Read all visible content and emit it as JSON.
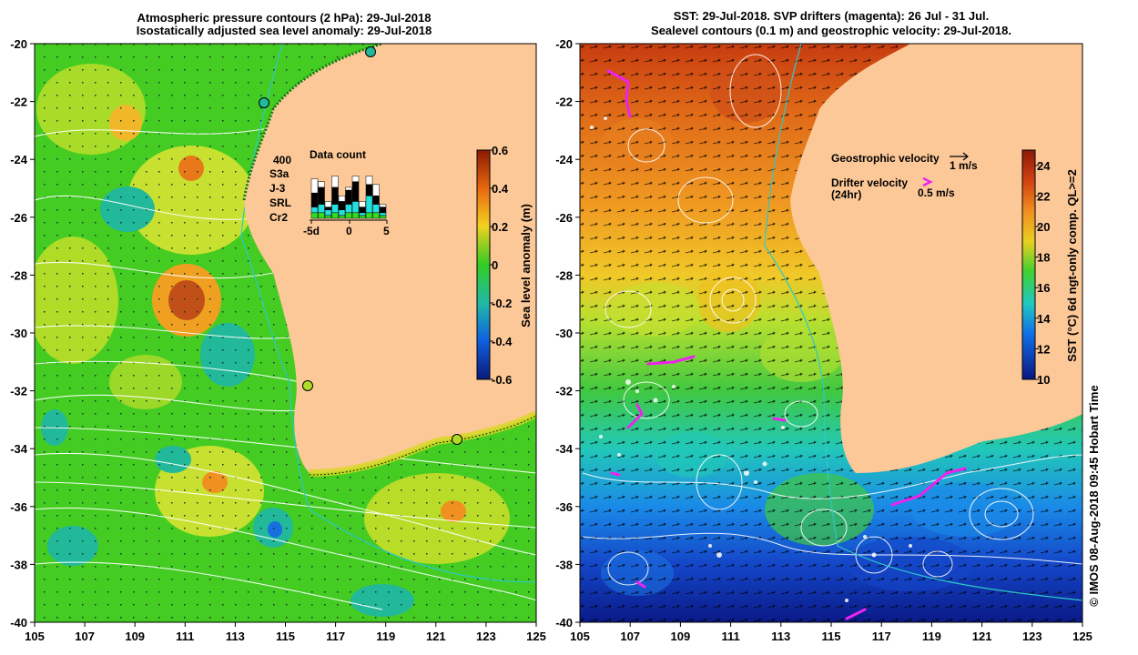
{
  "left_map": {
    "title_line1": "Atmospheric pressure contours (2 hPa): 29-Jul-2018",
    "title_line2": "Isostatically adjusted sea level anomaly: 29-Jul-2018",
    "lon_ticks": [
      "105",
      "107",
      "109",
      "111",
      "113",
      "115",
      "117",
      "119",
      "121",
      "123",
      "125"
    ],
    "lat_ticks": [
      "-20",
      "-22",
      "-24",
      "-26",
      "-28",
      "-30",
      "-32",
      "-34",
      "-36",
      "-38",
      "-40"
    ],
    "colorbar": {
      "label": "Sea level anomaly (m)",
      "ticks": [
        "0.6",
        "0.4",
        "0.2",
        "0",
        "-0.2",
        "-0.4",
        "-0.6"
      ],
      "range": [
        -0.6,
        0.6
      ]
    },
    "data_count": {
      "title": "Data count",
      "max_label": "400",
      "legend": [
        {
          "label": "S3a",
          "color": "#ffffff"
        },
        {
          "label": "J-3",
          "color": "#000000"
        },
        {
          "label": "SRL",
          "color": "#22e0e0"
        },
        {
          "label": "Cr2",
          "color": "#33dd22"
        }
      ],
      "x_ticks": [
        "-5d",
        "0",
        "5"
      ]
    }
  },
  "right_map": {
    "title_line1": "SST: 29-Jul-2018. SVP drifters (magenta): 26 Jul - 31 Jul.",
    "title_line2": "Sealevel contours (0.1 m) and geostrophic velocity: 29-Jul-2018.",
    "lon_ticks": [
      "105",
      "107",
      "109",
      "111",
      "113",
      "115",
      "117",
      "119",
      "121",
      "123",
      "125"
    ],
    "lat_ticks": [
      "-20",
      "-22",
      "-24",
      "-26",
      "-28",
      "-30",
      "-32",
      "-34",
      "-36",
      "-38",
      "-40"
    ],
    "legend": {
      "geo_label": "Geostrophic velocity",
      "geo_scale": "1 m/s",
      "drifter_label": "Drifter velocity",
      "drifter_sub": "(24hr)",
      "drifter_scale": "0.5 m/s"
    },
    "colorbar": {
      "label": "SST (°C) 6d ngt-only comp. QL>=2",
      "ticks": [
        "24",
        "22",
        "20",
        "18",
        "16",
        "14",
        "12",
        "10"
      ],
      "range": [
        10,
        25
      ]
    }
  },
  "credit": "© IMOS 08-Aug-2018 09:45 Hobart Time",
  "colors": {
    "land": "#fcc898",
    "ssha_mid": "#33cc22",
    "drifter": "#ee22ee",
    "contour": "#ffffff",
    "coast_contour": "#2ec8c8"
  }
}
